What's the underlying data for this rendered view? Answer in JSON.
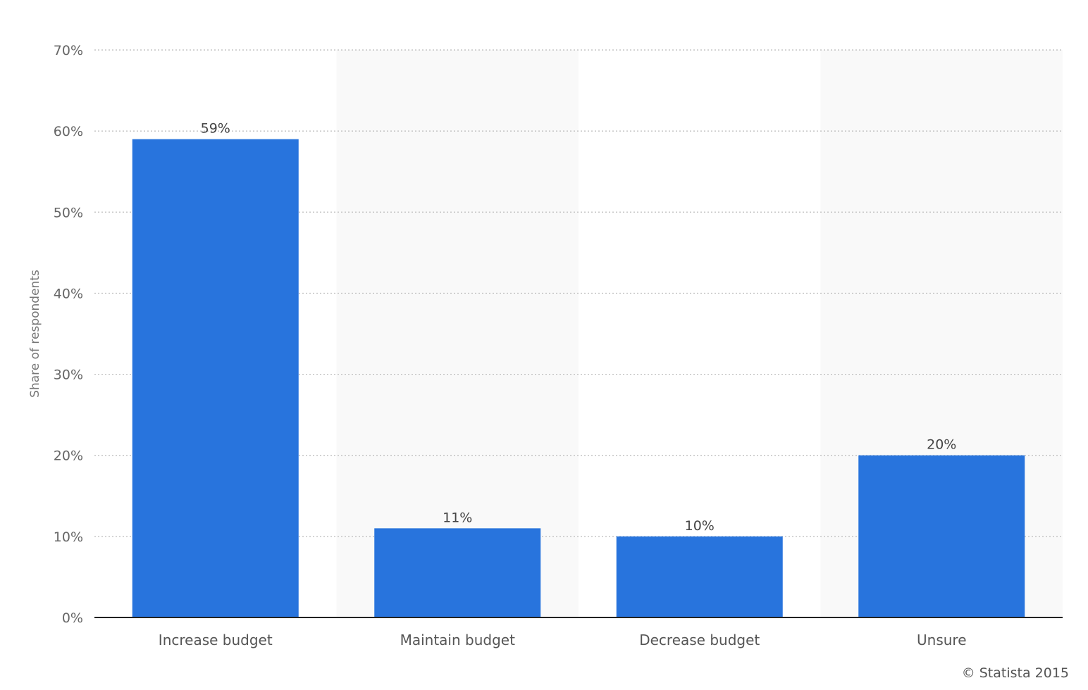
{
  "chart_data": {
    "type": "bar",
    "categories": [
      "Increase budget",
      "Maintain budget",
      "Decrease budget",
      "Unsure"
    ],
    "values": [
      59,
      11,
      10,
      20
    ],
    "value_labels": [
      "59%",
      "11%",
      "10%",
      "20%"
    ],
    "ylabel": "Share of respondents",
    "ylim": [
      0,
      70
    ],
    "yticks": [
      0,
      10,
      20,
      30,
      40,
      50,
      60,
      70
    ],
    "ytick_labels": [
      "0%",
      "10%",
      "20%",
      "30%",
      "40%",
      "50%",
      "60%",
      "70%"
    ],
    "grid": true,
    "bar_color": "#2874dd",
    "alt_band_color": "#f9f9f9"
  },
  "credit": "© Statista 2015"
}
